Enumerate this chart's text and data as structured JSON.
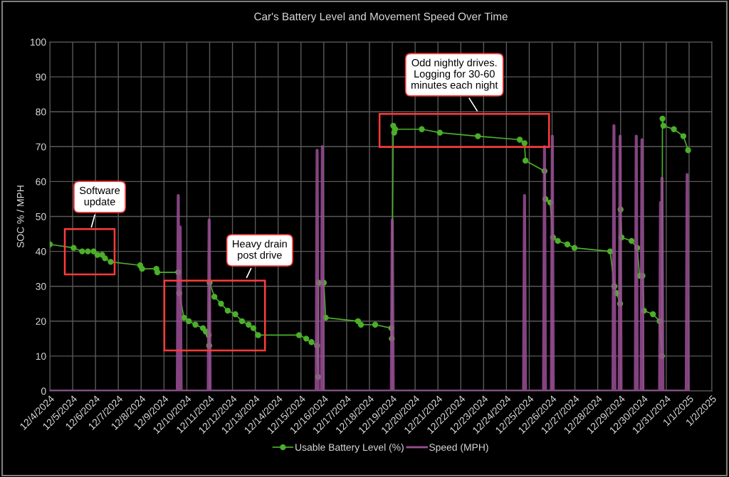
{
  "chart_data": {
    "type": "line",
    "title": "Car's Battery Level and Movement Speed Over Time",
    "ylabel": "SOC % / MPH",
    "xlim": [
      "2024-12-04",
      "2025-01-02"
    ],
    "xticks": [
      {
        "value": "2024-12-04",
        "label": "12/4/2024"
      },
      {
        "value": "2024-12-05",
        "label": "12/5/2024"
      },
      {
        "value": "2024-12-06",
        "label": "12/6/2024"
      },
      {
        "value": "2024-12-07",
        "label": "12/7/2024"
      },
      {
        "value": "2024-12-08",
        "label": "12/8/2024"
      },
      {
        "value": "2024-12-09",
        "label": "12/9/2024"
      },
      {
        "value": "2024-12-10",
        "label": "12/10/2024"
      },
      {
        "value": "2024-12-11",
        "label": "12/11/2024"
      },
      {
        "value": "2024-12-12",
        "label": "12/12/2024"
      },
      {
        "value": "2024-12-13",
        "label": "12/13/2024"
      },
      {
        "value": "2024-12-14",
        "label": "12/14/2024"
      },
      {
        "value": "2024-12-15",
        "label": "12/15/2024"
      },
      {
        "value": "2024-12-16",
        "label": "12/16/2024"
      },
      {
        "value": "2024-12-17",
        "label": "12/17/2024"
      },
      {
        "value": "2024-12-18",
        "label": "12/18/2024"
      },
      {
        "value": "2024-12-19",
        "label": "12/19/2024"
      },
      {
        "value": "2024-12-20",
        "label": "12/20/2024"
      },
      {
        "value": "2024-12-21",
        "label": "12/21/2024"
      },
      {
        "value": "2024-12-22",
        "label": "12/22/2024"
      },
      {
        "value": "2024-12-23",
        "label": "12/23/2024"
      },
      {
        "value": "2024-12-24",
        "label": "12/24/2024"
      },
      {
        "value": "2024-12-25",
        "label": "12/25/2024"
      },
      {
        "value": "2024-12-26",
        "label": "12/26/2024"
      },
      {
        "value": "2024-12-27",
        "label": "12/27/2024"
      },
      {
        "value": "2024-12-28",
        "label": "12/28/2024"
      },
      {
        "value": "2024-12-29",
        "label": "12/29/2024"
      },
      {
        "value": "2024-12-30",
        "label": "12/30/2024"
      },
      {
        "value": "2024-12-31",
        "label": "12/31/2024"
      },
      {
        "value": "2025-01-01",
        "label": "1/1/2025"
      },
      {
        "value": "2025-01-02",
        "label": "1/2/2025"
      }
    ],
    "ylim": [
      0,
      100
    ],
    "yticks": [
      0,
      10,
      20,
      30,
      40,
      50,
      60,
      70,
      80,
      90,
      100
    ],
    "grid": true,
    "legend": "bottom",
    "series": [
      {
        "name": "Usable Battery Level (%)",
        "color": "#4caf2a",
        "marker": "circle",
        "x": [
          "2024-12-04T00:00",
          "2024-12-05T01:00",
          "2024-12-05T10:00",
          "2024-12-05T16:00",
          "2024-12-05T22:00",
          "2024-12-06T02:00",
          "2024-12-06T07:00",
          "2024-12-06T10:00",
          "2024-12-06T16:00",
          "2024-12-07T23:00",
          "2024-12-08T01:00",
          "2024-12-08T16:00",
          "2024-12-08T17:00",
          "2024-12-09T15:00",
          "2024-12-09T16:00",
          "2024-12-09T21:00",
          "2024-12-10T02:00",
          "2024-12-10T09:00",
          "2024-12-10T17:00",
          "2024-12-10T20:00",
          "2024-12-10T23:00",
          "2024-12-10T23:30",
          "2024-12-11T00:00",
          "2024-12-11T05:00",
          "2024-12-11T12:00",
          "2024-12-11T19:00",
          "2024-12-12T03:00",
          "2024-12-12T10:00",
          "2024-12-12T17:00",
          "2024-12-12T22:00",
          "2024-12-13T03:00",
          "2024-12-14T22:00",
          "2024-12-15T05:30",
          "2024-12-15T11:00",
          "2024-12-15T17:00",
          "2024-12-15T18:00",
          "2024-12-15T18:30",
          "2024-12-16T00:00",
          "2024-12-16T02:00",
          "2024-12-17T12:00",
          "2024-12-17T15:00",
          "2024-12-18T06:00",
          "2024-12-18T23:00",
          "2024-12-18T23:30",
          "2024-12-19T01:00",
          "2024-12-19T02:00",
          "2024-12-19T03:00",
          "2024-12-20T07:00",
          "2024-12-21T02:00",
          "2024-12-22T18:00",
          "2024-12-24T14:00",
          "2024-12-24T19:00",
          "2024-12-24T20:00",
          "2024-12-25T16:00",
          "2024-12-25T17:00",
          "2024-12-25T22:00",
          "2024-12-26T01:00",
          "2024-12-26T06:00",
          "2024-12-26T16:00",
          "2024-12-26T23:30",
          "2024-12-28T13:00",
          "2024-12-28T17:30",
          "2024-12-28T20:00",
          "2024-12-28T23:30",
          "2024-12-29T00:00",
          "2024-12-29T01:00",
          "2024-12-29T11:30",
          "2024-12-29T17:30",
          "2024-12-29T20:00",
          "2024-12-29T23:00",
          "2024-12-30T00:30",
          "2024-12-30T10:00",
          "2024-12-30T17:00",
          "2024-12-30T19:30",
          "2024-12-30T20:00",
          "2024-12-30T21:00",
          "2024-12-31T08:00",
          "2024-12-31T18:00",
          "2024-12-31T23:00"
        ],
        "values": [
          42,
          41,
          40,
          40,
          40,
          39,
          39,
          38,
          37,
          36,
          35,
          35,
          34,
          34,
          28,
          21,
          20,
          19,
          18,
          17,
          16,
          13,
          31,
          27,
          25,
          23,
          22,
          20,
          19,
          18,
          16,
          16,
          15,
          14,
          13,
          4,
          31,
          31,
          21,
          20,
          19,
          19,
          18,
          15,
          76,
          74,
          75,
          75,
          74,
          73,
          72,
          71,
          66,
          63,
          55,
          54,
          44,
          43,
          42,
          41,
          40,
          30,
          28,
          25,
          52,
          44,
          43,
          41,
          33,
          33,
          23,
          22,
          20,
          10,
          78,
          76,
          75,
          73,
          69
        ]
      },
      {
        "name": "Speed (MPH)",
        "color": "#9b4f96",
        "marker": "none",
        "x": [
          "2024-12-04T00:00",
          "2024-12-09T14:00",
          "2024-12-09T15:00",
          "2024-12-09T16:00",
          "2024-12-09T17:00",
          "2024-12-09T18:00",
          "2024-12-10T22:30",
          "2024-12-10T23:30",
          "2024-12-11T00:30",
          "2024-12-15T16:00",
          "2024-12-15T17:00",
          "2024-12-15T18:00",
          "2024-12-15T21:30",
          "2024-12-15T22:30",
          "2024-12-15T23:30",
          "2024-12-18T23:00",
          "2024-12-19T00:00",
          "2024-12-19T01:00",
          "2024-12-24T18:00",
          "2024-12-24T19:00",
          "2024-12-24T20:00",
          "2024-12-25T15:00",
          "2024-12-25T16:00",
          "2024-12-25T17:00",
          "2024-12-25T23:15",
          "2024-12-26T00:15",
          "2024-12-26T01:15",
          "2024-12-28T16:00",
          "2024-12-28T17:00",
          "2024-12-28T18:00",
          "2024-12-28T22:30",
          "2024-12-28T23:30",
          "2024-12-29T00:30",
          "2024-12-29T15:30",
          "2024-12-29T16:30",
          "2024-12-29T17:30",
          "2024-12-29T21:30",
          "2024-12-29T22:30",
          "2024-12-29T23:30",
          "2024-12-30T17:00",
          "2024-12-30T18:00",
          "2024-12-30T19:00",
          "2024-12-30T19:30",
          "2024-12-30T20:30",
          "2024-12-31T21:00",
          "2024-12-31T22:00",
          "2024-12-31T23:00"
        ],
        "values": [
          0,
          0,
          56,
          0,
          47,
          0,
          0,
          49,
          0,
          0,
          69,
          0,
          0,
          70,
          0,
          0,
          49,
          0,
          0,
          56,
          0,
          0,
          70,
          0,
          0,
          73,
          0,
          0,
          76,
          0,
          0,
          73,
          0,
          0,
          73,
          0,
          0,
          72,
          0,
          0,
          54,
          0,
          61,
          0,
          0,
          62,
          0
        ]
      }
    ],
    "annotations": [
      "Software\nupdate",
      "Heavy drain\npost drive",
      "Odd nightly drives.\nLogging for 30-60\nminutes each night"
    ]
  }
}
